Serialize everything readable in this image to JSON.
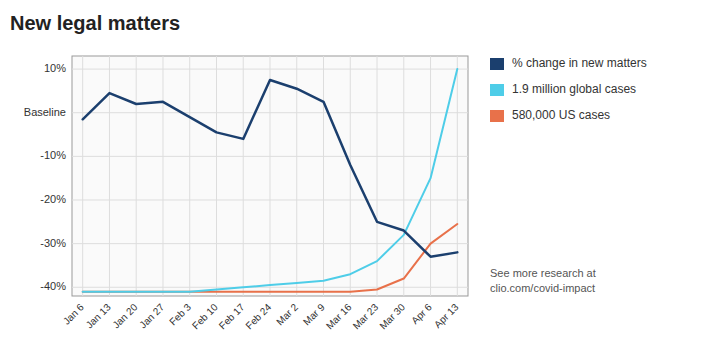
{
  "chart_data": {
    "type": "line",
    "title": "New legal matters",
    "categories": [
      "Jan 6",
      "Jan 13",
      "Jan 20",
      "Jan 27",
      "Feb 3",
      "Feb 10",
      "Feb 17",
      "Feb 24",
      "Mar 2",
      "Mar 9",
      "Mar 16",
      "Mar 23",
      "Mar 30",
      "Apr 6",
      "Apr 13"
    ],
    "series": [
      {
        "name": "% change in new matters",
        "color": "#1b3f6e",
        "values": [
          -1.5,
          4.5,
          2.0,
          2.5,
          -1.0,
          -4.5,
          -6.0,
          7.5,
          5.5,
          2.5,
          -12.0,
          -25.0,
          -27.0,
          -33.0,
          -32.0
        ]
      },
      {
        "name": "1.9 million global cases",
        "color": "#4ecde8",
        "values": [
          -41,
          -41,
          -41,
          -41,
          -41,
          -40.5,
          -40.0,
          -39.5,
          -39.0,
          -38.5,
          -37.0,
          -34.0,
          -28.0,
          -15.0,
          10.0
        ]
      },
      {
        "name": "580,000 US cases",
        "color": "#e8714a",
        "values": [
          -41,
          -41,
          -41,
          -41,
          -41,
          -41,
          -41,
          -41,
          -41,
          -41,
          -41,
          -40.5,
          -38.0,
          -30.0,
          -25.5
        ]
      }
    ],
    "ylim": [
      -42,
      13
    ],
    "yticks": [
      {
        "value": 10,
        "label": "10%"
      },
      {
        "value": 0,
        "label": "Baseline"
      },
      {
        "value": -10,
        "label": "-10%"
      },
      {
        "value": -20,
        "label": "-20%"
      },
      {
        "value": -30,
        "label": "-30%"
      },
      {
        "value": -40,
        "label": "-40%"
      }
    ],
    "grid": true,
    "legend": "right",
    "annotations": [
      "See more research at\nclio.com/covid-impact"
    ]
  }
}
